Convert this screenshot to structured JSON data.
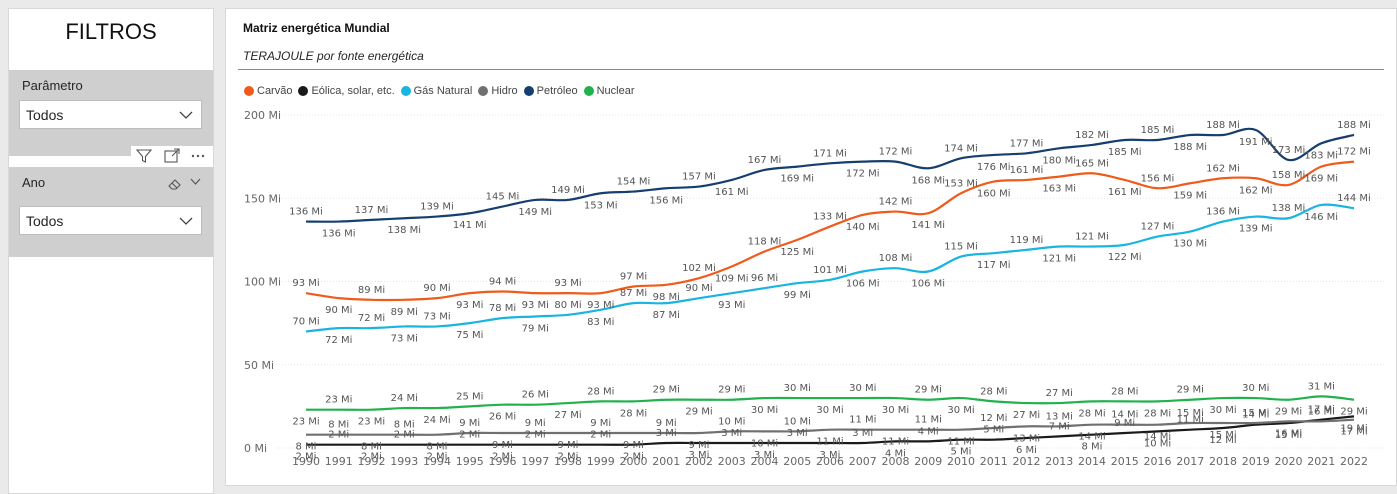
{
  "left_panel": {
    "title": "FILTROS",
    "slicers": [
      {
        "label": "Parâmetro",
        "value": "Todos"
      },
      {
        "label": "Ano",
        "value": "Todos"
      }
    ],
    "icons": [
      "filter-icon",
      "focus-mode-icon",
      "more-options-icon",
      "eraser-icon",
      "chevron-down-icon"
    ]
  },
  "chart_data": {
    "type": "line",
    "title": "Matriz energética Mundial",
    "subtitle": "TERAJOULE por fonte energética",
    "ylim": [
      0,
      200
    ],
    "y_ticks": [
      "0 Mi",
      "50 Mi",
      "100 Mi",
      "150 Mi",
      "200 Mi"
    ],
    "y_tick_values": [
      0,
      50,
      100,
      150,
      200
    ],
    "unit_suffix": " Mi",
    "legend_position": "top-left",
    "grid": true,
    "categories": [
      "1990",
      "1991",
      "1992",
      "1993",
      "1994",
      "1995",
      "1996",
      "1997",
      "1998",
      "1999",
      "2000",
      "2001",
      "2002",
      "2003",
      "2004",
      "2005",
      "2006",
      "2007",
      "2008",
      "2009",
      "2010",
      "2011",
      "2012",
      "2013",
      "2014",
      "2015",
      "2016",
      "2017",
      "2018",
      "2019",
      "2020",
      "2021",
      "2022"
    ],
    "series": [
      {
        "name": "Carvão",
        "color": "#f05a1a",
        "values": [
          93,
          90,
          89,
          89,
          90,
          93,
          94,
          93,
          93,
          93,
          97,
          98,
          102,
          109,
          118,
          125,
          133,
          140,
          142,
          141,
          153,
          160,
          161,
          163,
          165,
          161,
          156,
          159,
          162,
          162,
          158,
          169,
          172
        ]
      },
      {
        "name": "Eólica, solar, etc.",
        "color": "#1a1a1a",
        "values": [
          2,
          2,
          2,
          2,
          2,
          2,
          2,
          2,
          2,
          2,
          2,
          3,
          3,
          3,
          3,
          3,
          3,
          3,
          4,
          4,
          5,
          5,
          6,
          7,
          8,
          9,
          10,
          11,
          12,
          14,
          15,
          17,
          19
        ]
      },
      {
        "name": "Gás Natural",
        "color": "#1ab4e0",
        "values": [
          70,
          72,
          72,
          73,
          73,
          75,
          78,
          79,
          80,
          83,
          87,
          87,
          90,
          93,
          96,
          99,
          101,
          106,
          108,
          106,
          115,
          117,
          119,
          121,
          121,
          122,
          127,
          130,
          136,
          139,
          138,
          146,
          144
        ]
      },
      {
        "name": "Hidro",
        "color": "#707070",
        "values": [
          8,
          8,
          8,
          8,
          8,
          9,
          9,
          9,
          9,
          9,
          9,
          9,
          9,
          10,
          10,
          10,
          11,
          11,
          11,
          11,
          11,
          12,
          13,
          13,
          14,
          14,
          14,
          15,
          15,
          15,
          16,
          16,
          17
        ]
      },
      {
        "name": "Petróleo",
        "color": "#163e6e",
        "values": [
          136,
          136,
          137,
          138,
          139,
          141,
          145,
          149,
          149,
          153,
          154,
          156,
          157,
          161,
          167,
          169,
          171,
          172,
          172,
          168,
          174,
          176,
          177,
          180,
          182,
          185,
          185,
          188,
          188,
          191,
          173,
          183,
          188
        ]
      },
      {
        "name": "Nuclear",
        "color": "#22b14c",
        "values": [
          23,
          23,
          23,
          24,
          24,
          25,
          26,
          26,
          27,
          28,
          28,
          29,
          29,
          29,
          30,
          30,
          30,
          30,
          30,
          29,
          30,
          28,
          27,
          27,
          28,
          28,
          28,
          29,
          30,
          30,
          29,
          31,
          29
        ]
      }
    ]
  }
}
